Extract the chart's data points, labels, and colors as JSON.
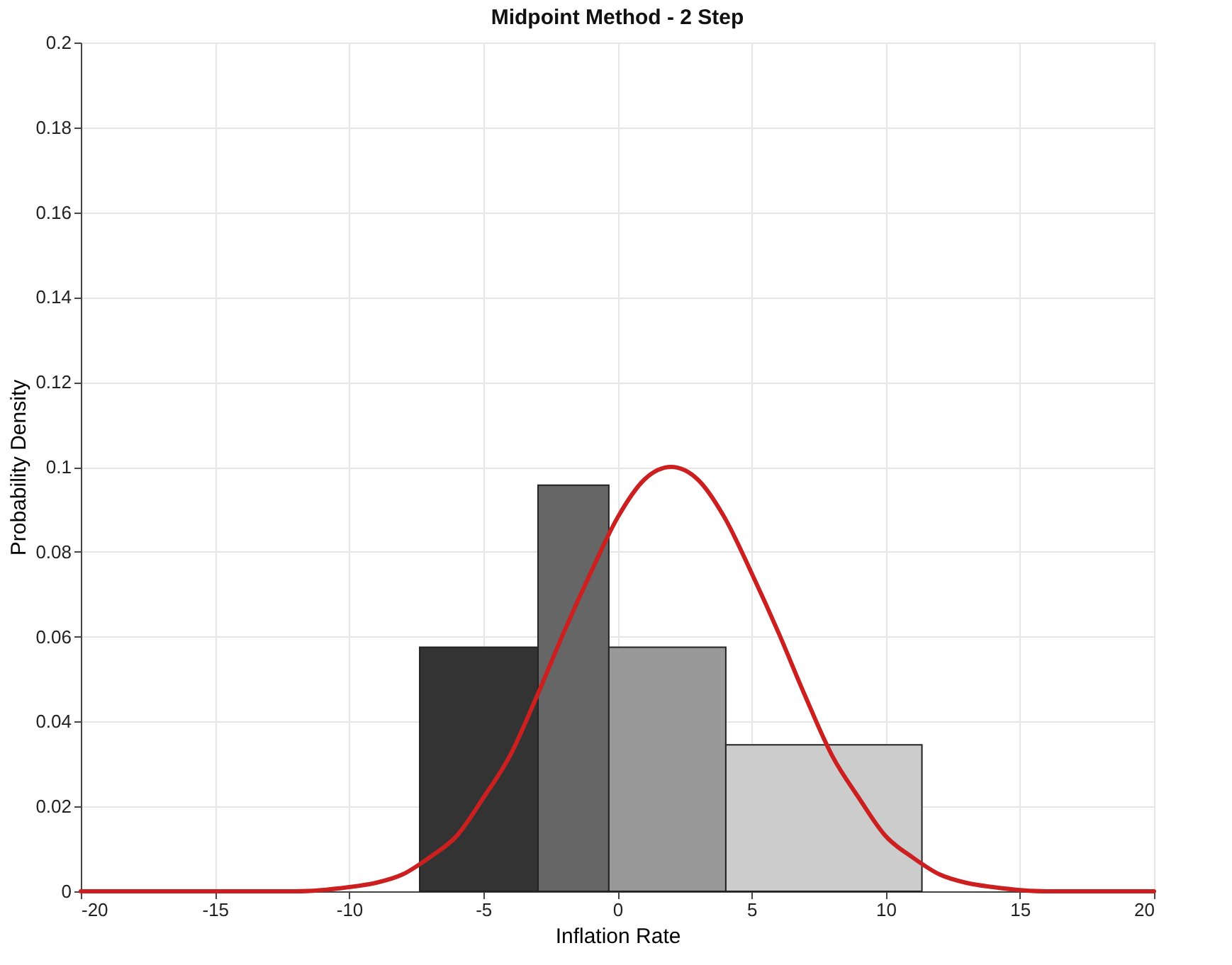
{
  "chart_data": {
    "type": "histogram",
    "title": "Midpoint Method - 2 Step",
    "xlabel": "Inflation Rate",
    "ylabel": "Probability Density",
    "bins": [
      -7.37,
      -2.96,
      -0.32,
      4.04,
      11.35
    ],
    "values": [
      0.0575,
      0.0957,
      0.0575,
      0.0345
    ],
    "colors": [
      "#333333",
      "#666666",
      "#999999",
      "#cccccc"
    ],
    "series": [
      {
        "type": "line",
        "color": "#cc1f1f",
        "x": [
          -20,
          -15,
          -12,
          -10,
          -9,
          -8,
          -7,
          -6,
          -5,
          -4,
          -3,
          -2,
          -1,
          0,
          1,
          2,
          3,
          4,
          5,
          6,
          7,
          8,
          9,
          10,
          11,
          12,
          13,
          14,
          16,
          20
        ],
        "values": [
          0,
          0,
          0,
          0.001,
          0.002,
          0.004,
          0.008,
          0.013,
          0.022,
          0.032,
          0.046,
          0.061,
          0.075,
          0.088,
          0.097,
          0.1,
          0.097,
          0.088,
          0.075,
          0.061,
          0.046,
          0.032,
          0.022,
          0.013,
          0.008,
          0.004,
          0.002,
          0.001,
          0,
          0
        ]
      }
    ],
    "xlim": [
      -20,
      20
    ],
    "xticks": [
      -20,
      -15,
      -10,
      -5,
      0,
      5,
      10,
      15,
      20
    ],
    "ylim": [
      0,
      0.2
    ],
    "yticks": [
      0,
      0.02,
      0.04,
      0.06,
      0.08,
      0.1,
      0.12,
      0.14,
      0.16,
      0.18,
      0.2
    ],
    "grid": true
  }
}
